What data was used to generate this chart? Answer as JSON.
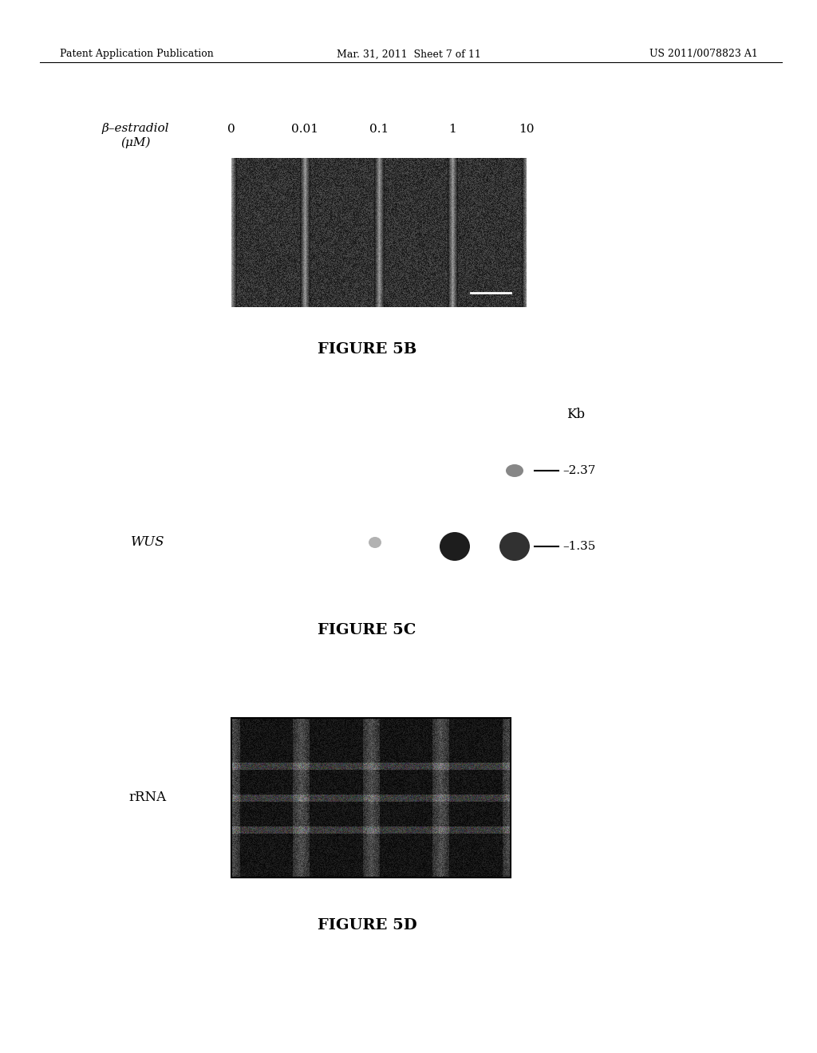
{
  "bg_color": "#f0ece4",
  "header_left": "Patent Application Publication",
  "header_center": "Mar. 31, 2011  Sheet 7 of 11",
  "header_right": "US 2011/0078823 A1",
  "header_fontsize": 9,
  "fig5b_label_left": "β–estradiol\n(μM)",
  "fig5b_concentrations": "0   0.01   0.1   1   10",
  "fig5b_caption": "FIGURE 5B",
  "fig5c_wus_label": "WUS",
  "fig5c_kb_label": "Kb",
  "fig5c_marker_237": "–2.37",
  "fig5c_marker_135": "–1.35",
  "fig5c_caption": "FIGURE 5C",
  "fig5d_rrna_label": "rRNA",
  "fig5d_caption": "FIGURE 5D",
  "caption_fontsize": 14,
  "label_fontsize": 11
}
